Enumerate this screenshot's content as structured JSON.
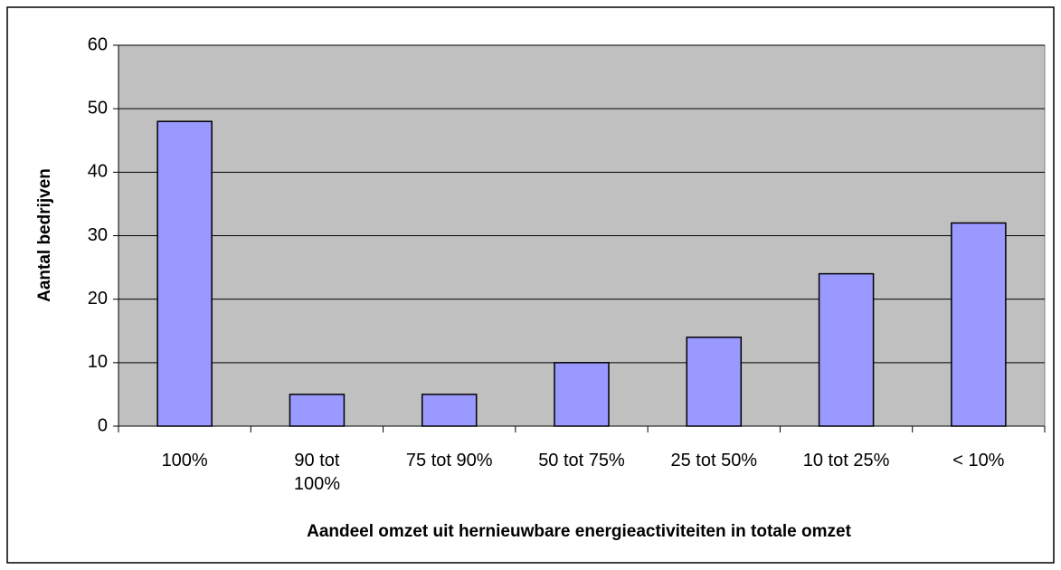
{
  "chart_data": {
    "type": "bar",
    "categories": [
      "100%",
      "90 tot 100%",
      "75 tot 90%",
      "50 tot 75%",
      "25 tot 50%",
      "10 tot 25%",
      "< 10%"
    ],
    "values": [
      48,
      5,
      5,
      10,
      14,
      24,
      32
    ],
    "color": "#9999ff",
    "ylim": [
      0,
      60
    ],
    "yticks": [
      0,
      10,
      20,
      30,
      40,
      50,
      60
    ],
    "grid": true,
    "y_label": "Aantal bedrijven",
    "x_label": "Aandeel omzet uit hernieuwbare energieactiviteiten in totale omzet"
  }
}
